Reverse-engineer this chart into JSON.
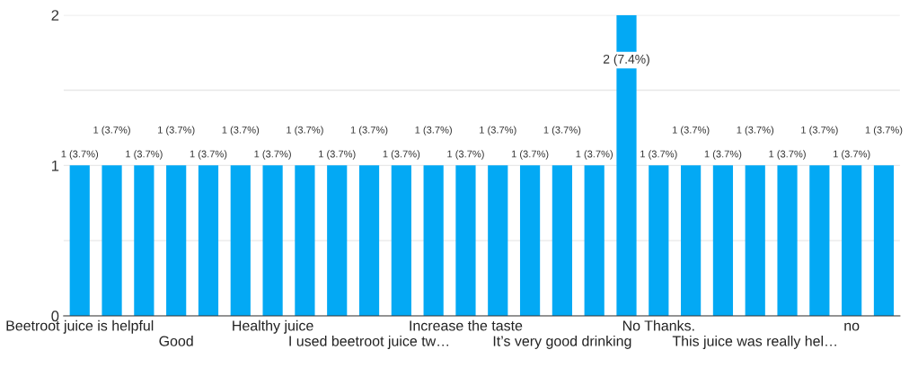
{
  "chart_data": {
    "type": "bar",
    "categories": [
      "Beetroot juice is helpful",
      null,
      null,
      "Good",
      null,
      null,
      "Healthy juice",
      null,
      null,
      "I used beetroot juice tw…",
      null,
      null,
      "Increase the taste",
      null,
      null,
      "It’s very good drinking",
      null,
      null,
      "No Thanks.",
      null,
      null,
      "This juice was really hel…",
      null,
      null,
      "no",
      null
    ],
    "values": [
      1,
      1,
      1,
      1,
      1,
      1,
      1,
      1,
      1,
      1,
      1,
      1,
      1,
      1,
      1,
      1,
      1,
      2,
      1,
      1,
      1,
      1,
      1,
      1,
      1,
      1
    ],
    "value_labels": [
      "1 (3.7%)",
      "1 (3.7%)",
      "1 (3.7%)",
      "1 (3.7%)",
      "1 (3.7%)",
      "1 (3.7%)",
      "1 (3.7%)",
      "1 (3.7%)",
      "1 (3.7%)",
      "1 (3.7%)",
      "1 (3.7%)",
      "1 (3.7%)",
      "1 (3.7%)",
      "1 (3.7%)",
      "1 (3.7%)",
      "1 (3.7%)",
      "1 (3.7%)",
      "2 (7.4%)",
      "1 (3.7%)",
      "1 (3.7%)",
      "1 (3.7%)",
      "1 (3.7%)",
      "1 (3.7%)",
      "1 (3.7%)",
      "1 (3.7%)",
      "1 (3.7%)"
    ],
    "color": "#03a9f4",
    "ylim": [
      0,
      2
    ],
    "yticks": [
      0,
      {
        "value": 0.5,
        "label": null
      },
      1,
      {
        "value": 1.5,
        "label": null
      },
      2
    ],
    "grid": "y",
    "legend": false
  }
}
